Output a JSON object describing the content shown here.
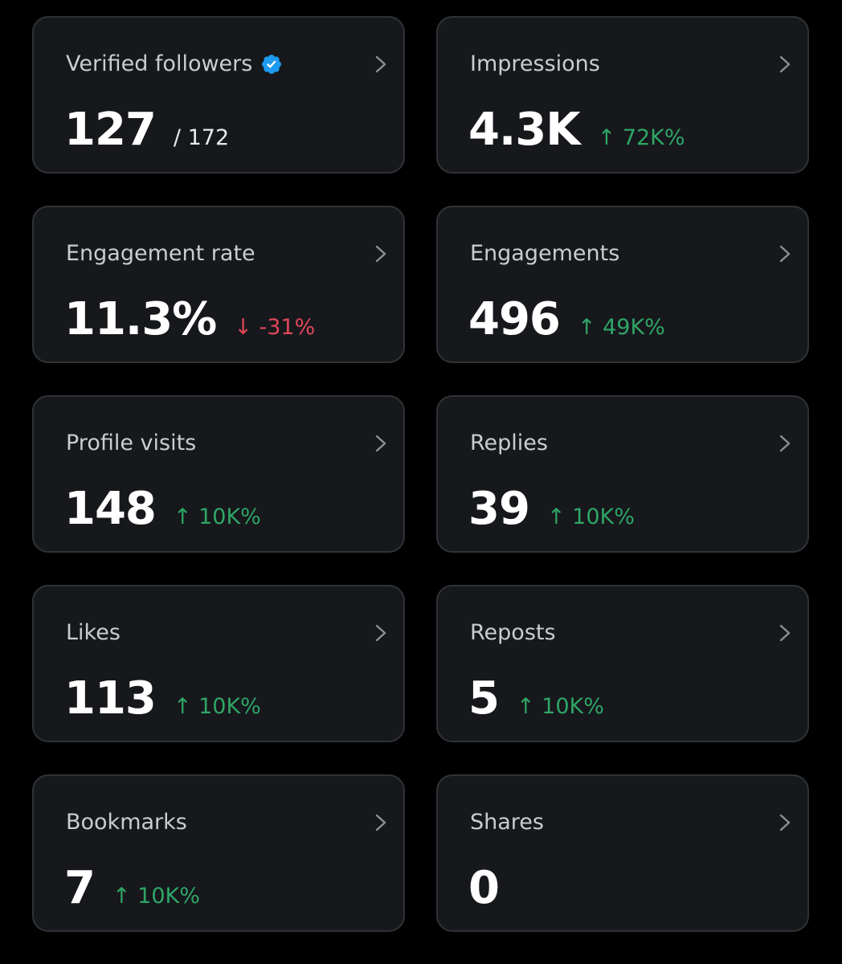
{
  "colors": {
    "background": "#000000",
    "card": "#16181c",
    "card_border": "#2f3336",
    "positive": "#2fa566",
    "negative": "#e0475a",
    "verified_badge": "#1d9bf0"
  },
  "cards": [
    {
      "title": "Verified followers",
      "value": "127",
      "sub": "/ 172",
      "delta": "",
      "verified_icon": "verified-badge-icon"
    },
    {
      "title": "Impressions",
      "value": "4.3K",
      "sub": "",
      "delta": "↑ 72K%",
      "direction": "up"
    },
    {
      "title": "Engagement rate",
      "value": "11.3%",
      "sub": "",
      "delta": "↓ -31%",
      "direction": "down"
    },
    {
      "title": "Engagements",
      "value": "496",
      "sub": "",
      "delta": "↑ 49K%",
      "direction": "up"
    },
    {
      "title": "Profile visits",
      "value": "148",
      "sub": "",
      "delta": "↑ 10K%",
      "direction": "up"
    },
    {
      "title": "Replies",
      "value": "39",
      "sub": "",
      "delta": "↑ 10K%",
      "direction": "up"
    },
    {
      "title": "Likes",
      "value": "113",
      "sub": "",
      "delta": "↑ 10K%",
      "direction": "up"
    },
    {
      "title": "Reposts",
      "value": "5",
      "sub": "",
      "delta": "↑ 10K%",
      "direction": "up"
    },
    {
      "title": "Bookmarks",
      "value": "7",
      "sub": "",
      "delta": "↑ 10K%",
      "direction": "up"
    },
    {
      "title": "Shares",
      "value": "0",
      "sub": "",
      "delta": ""
    }
  ],
  "icons": {
    "chevron": "chevron-right-icon"
  }
}
